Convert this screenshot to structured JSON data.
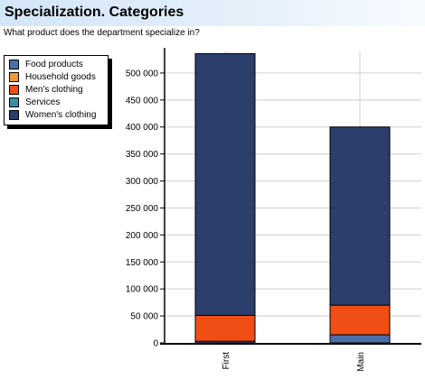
{
  "header": {
    "title": "Specialization. Categories",
    "subtitle": "What product does the department specialize in?"
  },
  "chart_data": {
    "type": "bar",
    "stacked": true,
    "categories": [
      "First",
      "Main"
    ],
    "series": [
      {
        "name": "Food products",
        "color": "#4a6ea8",
        "values": [
          3000,
          15000
        ]
      },
      {
        "name": "Household goods",
        "color": "#f19a3a",
        "values": [
          0,
          0
        ]
      },
      {
        "name": "Men's clothing",
        "color": "#f04e14",
        "values": [
          48000,
          55000
        ]
      },
      {
        "name": "Services",
        "color": "#3b8fa0",
        "values": [
          0,
          0
        ]
      },
      {
        "name": "Women's clothing",
        "color": "#2c3e6b",
        "values": [
          485000,
          330000
        ]
      }
    ],
    "ylim": [
      0,
      540000
    ],
    "yticks": [
      0,
      50000,
      100000,
      150000,
      200000,
      250000,
      300000,
      350000,
      400000,
      450000,
      500000
    ],
    "ytick_labels": [
      "0",
      "50 000",
      "100 000",
      "150 000",
      "200 000",
      "250 000",
      "300 000",
      "350 000",
      "400 000",
      "450 000",
      "500 000"
    ],
    "grid": true,
    "legend_position": "top-left"
  }
}
